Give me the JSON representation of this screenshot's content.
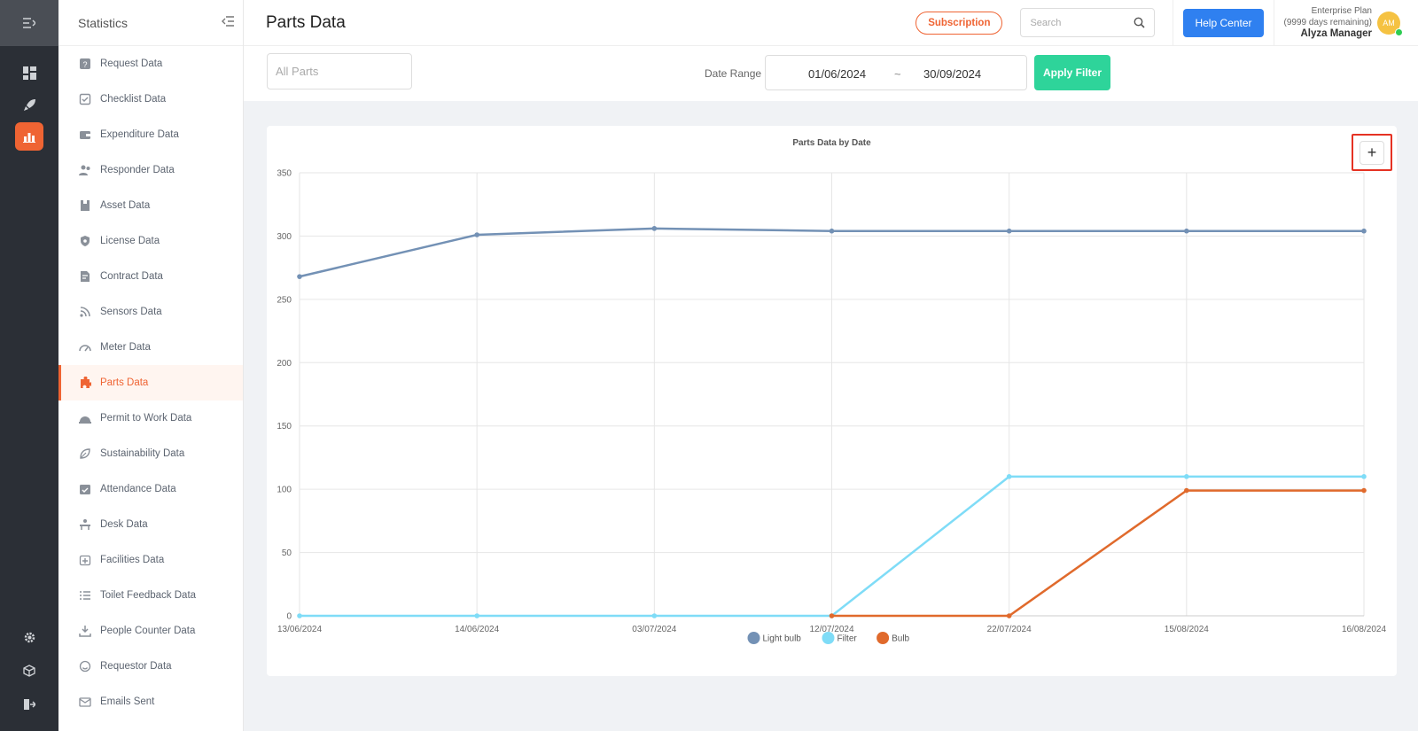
{
  "sidebar": {
    "title": "Statistics",
    "items": [
      {
        "label": "Request Data",
        "icon": "question-icon"
      },
      {
        "label": "Checklist Data",
        "icon": "checklist-icon"
      },
      {
        "label": "Expenditure Data",
        "icon": "wallet-icon"
      },
      {
        "label": "Responder Data",
        "icon": "users-icon"
      },
      {
        "label": "Asset Data",
        "icon": "asset-icon"
      },
      {
        "label": "License Data",
        "icon": "shield-icon"
      },
      {
        "label": "Contract Data",
        "icon": "contract-icon"
      },
      {
        "label": "Sensors Data",
        "icon": "rss-icon"
      },
      {
        "label": "Meter Data",
        "icon": "gauge-icon"
      },
      {
        "label": "Parts Data",
        "icon": "puzzle-icon",
        "active": true
      },
      {
        "label": "Permit to Work Data",
        "icon": "helmet-icon"
      },
      {
        "label": "Sustainability Data",
        "icon": "leaf-icon"
      },
      {
        "label": "Attendance Data",
        "icon": "calendar-check-icon"
      },
      {
        "label": "Desk Data",
        "icon": "desk-icon"
      },
      {
        "label": "Facilities Data",
        "icon": "calendar-plus-icon"
      },
      {
        "label": "Toilet Feedback Data",
        "icon": "list-icon"
      },
      {
        "label": "People Counter Data",
        "icon": "download-icon"
      },
      {
        "label": "Requestor Data",
        "icon": "smile-icon"
      },
      {
        "label": "Emails Sent",
        "icon": "mail-icon"
      }
    ]
  },
  "header": {
    "title": "Parts Data",
    "subscription_label": "Subscription",
    "search_placeholder": "Search",
    "help_label": "Help Center",
    "plan": "Enterprise Plan",
    "days_remaining": "(9999 days remaining)",
    "user_name": "Alyza Manager",
    "avatar_initials": "AM"
  },
  "filters": {
    "parts_placeholder": "All Parts",
    "date_range_label": "Date Range",
    "date_from": "01/06/2024",
    "date_separator": "~",
    "date_to": "30/09/2024",
    "apply_label": "Apply Filter"
  },
  "zoom_button": "+",
  "chart_data": {
    "type": "line",
    "title": "Parts Data by Date",
    "categories": [
      "13/06/2024",
      "14/06/2024",
      "03/07/2024",
      "12/07/2024",
      "22/07/2024",
      "15/08/2024",
      "16/08/2024"
    ],
    "ylim": [
      0,
      350
    ],
    "yticks": [
      0,
      50,
      100,
      150,
      200,
      250,
      300,
      350
    ],
    "grid": true,
    "legend_position": "bottom",
    "series": [
      {
        "name": "Light bulb",
        "color": "#7391b5",
        "values": [
          268,
          301,
          306,
          304,
          304,
          304,
          304
        ]
      },
      {
        "name": "Filter",
        "color": "#7fdcf7",
        "values": [
          0,
          0,
          0,
          0,
          110,
          110,
          110
        ]
      },
      {
        "name": "Bulb",
        "color": "#e06a2c",
        "values": [
          null,
          null,
          null,
          0,
          0,
          99,
          99
        ]
      }
    ]
  }
}
